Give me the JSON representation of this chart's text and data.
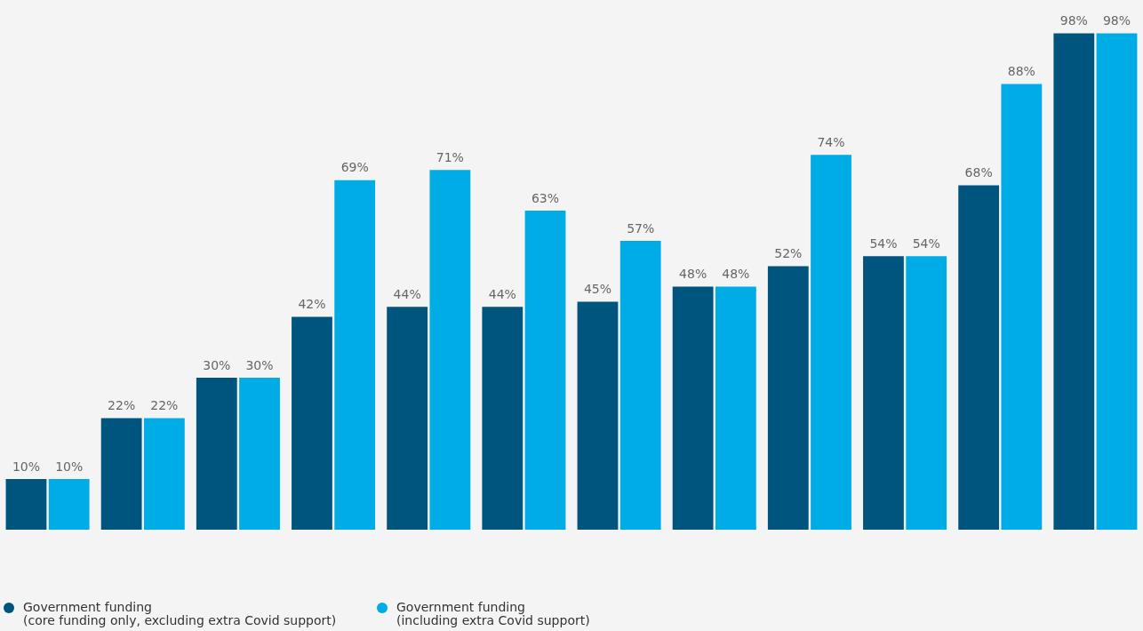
{
  "chart_data": {
    "type": "bar",
    "categories": [
      null,
      null,
      null,
      null,
      null,
      null,
      null,
      null,
      null,
      null,
      null,
      null
    ],
    "series": [
      {
        "name": "Government funding\n(core funding only, excluding extra Covid support)",
        "color": "#00557f",
        "values": [
          10,
          22,
          30,
          42,
          44,
          44,
          45,
          48,
          52,
          54,
          68,
          98
        ],
        "value_labels": [
          "10%",
          "22%",
          "30%",
          "42%",
          "44%",
          "44%",
          "45%",
          "48%",
          "52%",
          "54%",
          "68%",
          "98%"
        ]
      },
      {
        "name": "Government funding\n(including extra Covid support)",
        "color": "#00ace6",
        "values": [
          10,
          22,
          30,
          69,
          71,
          63,
          57,
          48,
          74,
          54,
          88,
          98
        ],
        "value_labels": [
          "10%",
          "22%",
          "30%",
          "69%",
          "71%",
          "63%",
          "57%",
          "48%",
          "74%",
          "54%",
          "88%",
          "98%"
        ]
      }
    ],
    "tick_labels": false,
    "legend": "bottom left"
  }
}
